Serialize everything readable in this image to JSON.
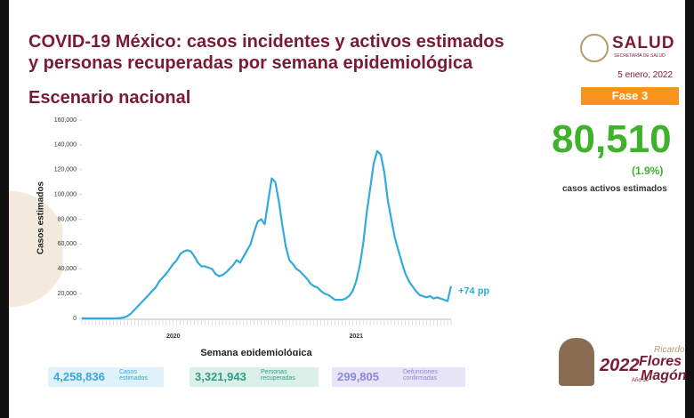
{
  "header": {
    "title_line1": "COVID-19 México: casos incidentes y activos estimados",
    "title_line2": "y personas recuperadas por semana epidemiológica",
    "subtitle": "Escenario nacional",
    "logo": "SALUD",
    "logo_sub": "SECRETARÍA DE SALUD",
    "date": "5 enero, 2022",
    "phase": "Fase 3"
  },
  "kpi": {
    "value": "80,510",
    "pct": "(1.9%)",
    "label": "casos activos estimados"
  },
  "chart_data": {
    "type": "line",
    "ylabel": "Casos estimados",
    "xlabel": "Semana epidemiológica",
    "year_labels": [
      "2020",
      "2021"
    ],
    "annotation": "+74 pp",
    "ylim": [
      0,
      160000
    ],
    "yticks": [
      0,
      {
        "value": 20000,
        "label": "20,000"
      },
      {
        "value": 40000,
        "label": "40,000"
      },
      {
        "value": 60000,
        "label": "60,000"
      },
      {
        "value": 80000,
        "label": "80,000"
      },
      {
        "value": 100000,
        "label": "100,000"
      },
      {
        "value": 120000,
        "label": "120,000"
      },
      {
        "value": 140000,
        "label": "140,000"
      },
      {
        "value": 160000,
        "label": "160,000"
      }
    ],
    "series": [
      {
        "name": "Casos estimados",
        "color": "#33a9dc",
        "values": [
          0,
          0,
          0,
          0,
          0,
          0,
          0,
          0,
          0,
          0,
          100,
          300,
          800,
          2000,
          4000,
          7000,
          10000,
          13000,
          16000,
          19000,
          22000,
          25000,
          30000,
          33000,
          36000,
          40000,
          44000,
          47000,
          52000,
          54000,
          55000,
          54000,
          50000,
          45000,
          42000,
          42000,
          41000,
          40000,
          36000,
          34000,
          35000,
          37000,
          40000,
          43000,
          47000,
          45000,
          50000,
          55000,
          60000,
          70000,
          78000,
          80000,
          76000,
          95000,
          113000,
          110000,
          95000,
          75000,
          58000,
          47000,
          44000,
          40000,
          38000,
          35000,
          32000,
          28000,
          26000,
          25000,
          22000,
          20000,
          19000,
          17000,
          15000,
          15000,
          15000,
          16000,
          18000,
          22000,
          30000,
          42000,
          60000,
          85000,
          105000,
          125000,
          135000,
          132000,
          118000,
          95000,
          80000,
          65000,
          55000,
          45000,
          36000,
          30000,
          26000,
          22000,
          19000,
          18000,
          17000,
          18000,
          16000,
          17000,
          16000,
          15000,
          14000,
          26000
        ]
      }
    ]
  },
  "totals": [
    {
      "value": "4,258,836",
      "label": "Casos estimados"
    },
    {
      "value": "3,321,943",
      "label": "Personas recuperadas"
    },
    {
      "value": "299,805",
      "label": "Defunciones confirmadas"
    }
  ],
  "footer_logo": {
    "year": "2022",
    "line1": "Año de",
    "line2": "Ricardo",
    "line3": "Flores",
    "line4": "Magón"
  }
}
